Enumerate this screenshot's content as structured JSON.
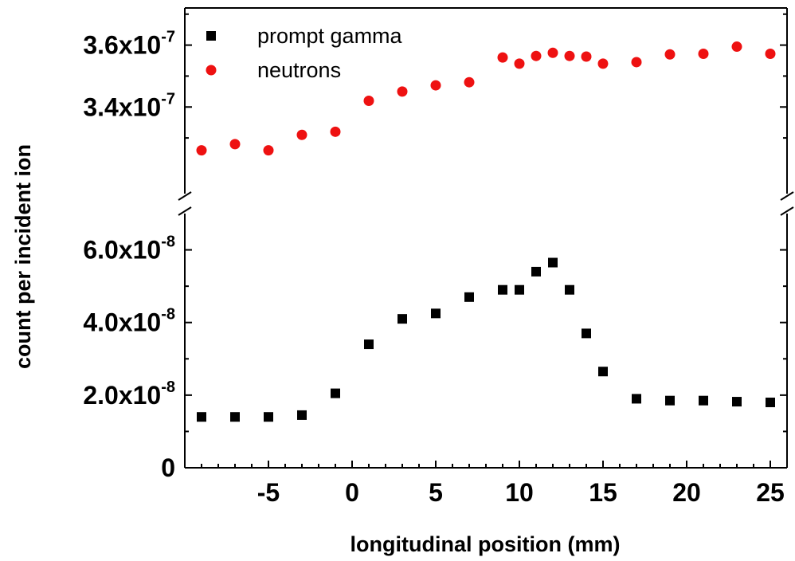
{
  "chart_data": {
    "type": "scatter",
    "title": "",
    "xlabel": "longitudinal position (mm)",
    "ylabel": "count per incident ion",
    "xlim": [
      -10,
      26
    ],
    "x_ticks": [
      {
        "value": -5,
        "label": "-5"
      },
      {
        "value": 0,
        "label": "0"
      },
      {
        "value": 5,
        "label": "5"
      },
      {
        "value": 10,
        "label": "10"
      },
      {
        "value": 15,
        "label": "15"
      },
      {
        "value": 20,
        "label": "20"
      },
      {
        "value": 25,
        "label": "25"
      }
    ],
    "broken_y_axis": true,
    "ylim_lower": [
      0,
      7e-08
    ],
    "ylim_upper": [
      3.12e-07,
      3.72e-07
    ],
    "y_ticks_lower": [
      {
        "value": 0,
        "mantissa": "0",
        "exponent": ""
      },
      {
        "value": 2e-08,
        "mantissa": "2.0x10",
        "exponent": "-8"
      },
      {
        "value": 4e-08,
        "mantissa": "4.0x10",
        "exponent": "-8"
      },
      {
        "value": 6e-08,
        "mantissa": "6.0x10",
        "exponent": "-8"
      }
    ],
    "y_ticks_upper": [
      {
        "value": 3.4e-07,
        "mantissa": "3.4x10",
        "exponent": "-7"
      },
      {
        "value": 3.6e-07,
        "mantissa": "3.6x10",
        "exponent": "-7"
      }
    ],
    "legend_position": "top-left",
    "series": [
      {
        "name": "prompt gamma",
        "marker": "square",
        "color": "#000000",
        "x": [
          -9,
          -7,
          -5,
          -3,
          -1,
          1,
          3,
          5,
          7,
          9,
          10,
          11,
          12,
          13,
          14,
          15,
          17,
          19,
          21,
          23,
          25
        ],
        "y": [
          1.4e-08,
          1.4e-08,
          1.4e-08,
          1.45e-08,
          2.05e-08,
          3.4e-08,
          4.1e-08,
          4.25e-08,
          4.7e-08,
          4.9e-08,
          4.9e-08,
          5.4e-08,
          5.65e-08,
          4.9e-08,
          3.7e-08,
          2.65e-08,
          1.9e-08,
          1.85e-08,
          1.85e-08,
          1.82e-08,
          1.8e-08
        ]
      },
      {
        "name": "neutrons",
        "marker": "circle",
        "color": "#ee1111",
        "x": [
          -9,
          -7,
          -5,
          -3,
          -1,
          1,
          3,
          5,
          7,
          9,
          10,
          11,
          12,
          13,
          14,
          15,
          17,
          19,
          21,
          23,
          25
        ],
        "y": [
          3.26e-07,
          3.28e-07,
          3.26e-07,
          3.31e-07,
          3.32e-07,
          3.42e-07,
          3.45e-07,
          3.47e-07,
          3.48e-07,
          3.56e-07,
          3.54e-07,
          3.565e-07,
          3.575e-07,
          3.565e-07,
          3.563e-07,
          3.54e-07,
          3.545e-07,
          3.57e-07,
          3.572e-07,
          3.595e-07,
          3.572e-07
        ]
      }
    ]
  }
}
